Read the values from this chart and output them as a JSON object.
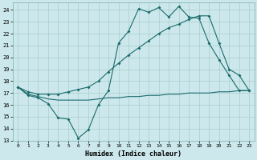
{
  "title": "",
  "xlabel": "Humidex (Indice chaleur)",
  "bg_color": "#cce8ec",
  "grid_color": "#aacccc",
  "line_color": "#1a6b6b",
  "xlim": [
    -0.5,
    23.5
  ],
  "ylim": [
    13,
    24.6
  ],
  "yticks": [
    13,
    14,
    15,
    16,
    17,
    18,
    19,
    20,
    21,
    22,
    23,
    24
  ],
  "xticks": [
    0,
    1,
    2,
    3,
    4,
    5,
    6,
    7,
    8,
    9,
    10,
    11,
    12,
    13,
    14,
    15,
    16,
    17,
    18,
    19,
    20,
    21,
    22,
    23
  ],
  "line1_x": [
    0,
    1,
    2,
    3,
    4,
    5,
    6,
    7,
    8,
    9,
    10,
    11,
    12,
    13,
    14,
    15,
    16,
    17,
    18,
    19,
    20,
    21,
    22,
    23
  ],
  "line1_y": [
    17.5,
    16.8,
    16.6,
    16.1,
    14.9,
    14.8,
    13.2,
    13.9,
    16.0,
    17.2,
    21.2,
    22.2,
    24.1,
    23.8,
    24.2,
    23.4,
    24.3,
    23.4,
    23.3,
    21.2,
    19.8,
    18.5,
    17.2,
    17.2
  ],
  "line2_x": [
    0,
    1,
    2,
    3,
    4,
    5,
    6,
    7,
    8,
    9,
    10,
    11,
    12,
    13,
    14,
    15,
    16,
    17,
    18,
    19,
    20,
    21,
    22,
    23
  ],
  "line2_y": [
    17.5,
    16.9,
    16.7,
    16.5,
    16.4,
    16.4,
    16.4,
    16.4,
    16.5,
    16.6,
    16.6,
    16.7,
    16.7,
    16.8,
    16.8,
    16.9,
    16.9,
    17.0,
    17.0,
    17.0,
    17.1,
    17.1,
    17.2,
    17.2
  ],
  "line3_x": [
    0,
    1,
    2,
    3,
    4,
    5,
    6,
    7,
    8,
    9,
    10,
    11,
    12,
    13,
    14,
    15,
    16,
    17,
    18,
    19,
    20,
    21,
    22,
    23
  ],
  "line3_y": [
    17.5,
    17.1,
    16.9,
    16.9,
    16.9,
    17.1,
    17.3,
    17.5,
    18.0,
    18.8,
    19.5,
    20.2,
    20.8,
    21.4,
    22.0,
    22.5,
    22.8,
    23.2,
    23.5,
    23.5,
    21.2,
    19.0,
    18.5,
    17.2
  ]
}
